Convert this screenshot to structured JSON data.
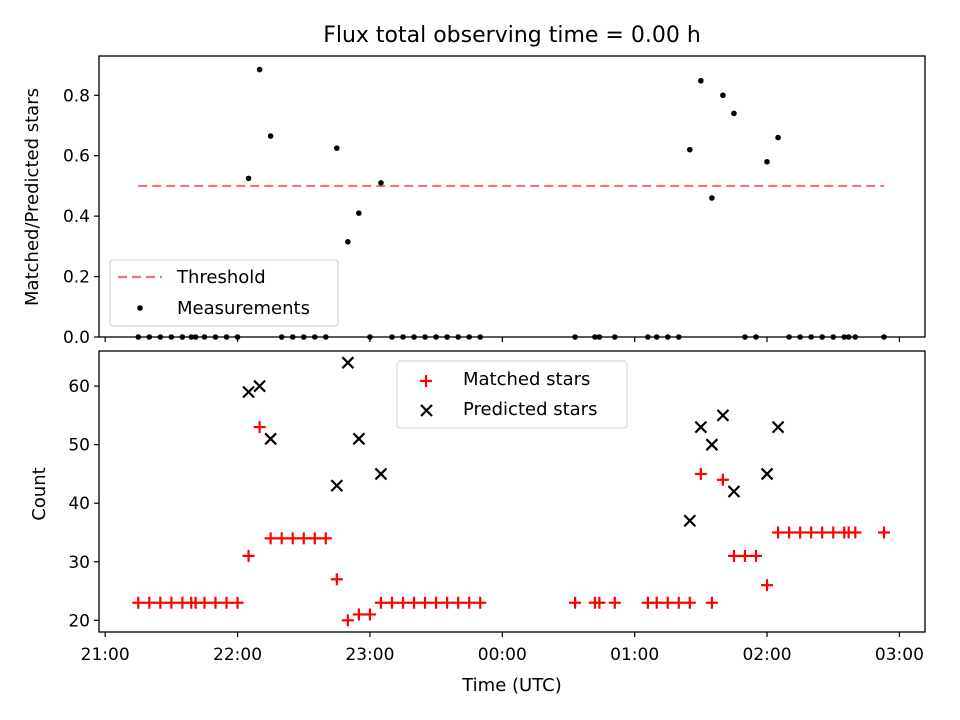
{
  "chart_data": [
    {
      "type": "scatter",
      "title": "Flux total observing time = 0.00 h",
      "xlabel": "",
      "ylabel": "Matched/Predicted stars",
      "xlim": [
        "21:00",
        "03:00"
      ],
      "ylim": [
        0,
        0.93
      ],
      "yticks": [
        "0.0",
        "0.2",
        "0.4",
        "0.6",
        "0.8"
      ],
      "legend_position": "lower-left",
      "threshold": {
        "name": "Threshold",
        "value": 0.5,
        "x_start": "21:15",
        "x_end": "02:53",
        "color": "#f87171"
      },
      "series": [
        {
          "name": "Measurements",
          "color": "#000000",
          "points": [
            [
              "21:15",
              0
            ],
            [
              "21:20",
              0
            ],
            [
              "21:25",
              0
            ],
            [
              "21:30",
              0
            ],
            [
              "21:35",
              0
            ],
            [
              "21:39",
              0
            ],
            [
              "21:41",
              0
            ],
            [
              "21:45",
              0
            ],
            [
              "21:50",
              0
            ],
            [
              "21:55",
              0
            ],
            [
              "22:00",
              0
            ],
            [
              "22:05",
              0.525
            ],
            [
              "22:10",
              0.885
            ],
            [
              "22:15",
              0.665
            ],
            [
              "22:20",
              0
            ],
            [
              "22:25",
              0
            ],
            [
              "22:30",
              0
            ],
            [
              "22:35",
              0
            ],
            [
              "22:40",
              0
            ],
            [
              "22:45",
              0.625
            ],
            [
              "22:50",
              0.315
            ],
            [
              "22:55",
              0.41
            ],
            [
              "23:00",
              0
            ],
            [
              "23:05",
              0.51
            ],
            [
              "23:10",
              0
            ],
            [
              "23:15",
              0
            ],
            [
              "23:20",
              0
            ],
            [
              "23:25",
              0
            ],
            [
              "23:30",
              0
            ],
            [
              "23:35",
              0
            ],
            [
              "23:40",
              0
            ],
            [
              "23:45",
              0
            ],
            [
              "23:50",
              0
            ],
            [
              "00:33",
              0
            ],
            [
              "00:42",
              0
            ],
            [
              "00:44",
              0
            ],
            [
              "00:51",
              0
            ],
            [
              "01:06",
              0
            ],
            [
              "01:10",
              0
            ],
            [
              "01:15",
              0
            ],
            [
              "01:20",
              0
            ],
            [
              "01:25",
              0.62
            ],
            [
              "01:30",
              0.848
            ],
            [
              "01:35",
              0.46
            ],
            [
              "01:40",
              0.8
            ],
            [
              "01:45",
              0.74
            ],
            [
              "01:50",
              0
            ],
            [
              "01:55",
              0
            ],
            [
              "02:00",
              0.58
            ],
            [
              "02:05",
              0.66
            ],
            [
              "02:10",
              0
            ],
            [
              "02:15",
              0
            ],
            [
              "02:20",
              0
            ],
            [
              "02:25",
              0
            ],
            [
              "02:30",
              0
            ],
            [
              "02:35",
              0
            ],
            [
              "02:37",
              0
            ],
            [
              "02:40",
              0
            ],
            [
              "02:53",
              0
            ]
          ]
        }
      ]
    },
    {
      "type": "scatter",
      "title": "",
      "xlabel": "Time (UTC)",
      "ylabel": "Count",
      "xlim": [
        "21:00",
        "03:00"
      ],
      "ylim": [
        18,
        66
      ],
      "yticks": [
        "20",
        "30",
        "40",
        "50",
        "60"
      ],
      "xticks": [
        "21:00",
        "22:00",
        "23:00",
        "00:00",
        "01:00",
        "02:00",
        "03:00"
      ],
      "legend_position": "upper-center",
      "series": [
        {
          "name": "Matched stars",
          "marker": "plus",
          "color": "#ff0000",
          "points": [
            [
              "21:15",
              23
            ],
            [
              "21:20",
              23
            ],
            [
              "21:25",
              23
            ],
            [
              "21:30",
              23
            ],
            [
              "21:35",
              23
            ],
            [
              "21:39",
              23
            ],
            [
              "21:41",
              23
            ],
            [
              "21:45",
              23
            ],
            [
              "21:50",
              23
            ],
            [
              "21:55",
              23
            ],
            [
              "22:00",
              23
            ],
            [
              "22:05",
              31
            ],
            [
              "22:10",
              53
            ],
            [
              "22:15",
              34
            ],
            [
              "22:20",
              34
            ],
            [
              "22:25",
              34
            ],
            [
              "22:30",
              34
            ],
            [
              "22:35",
              34
            ],
            [
              "22:40",
              34
            ],
            [
              "22:45",
              27
            ],
            [
              "22:50",
              20
            ],
            [
              "22:55",
              21
            ],
            [
              "23:00",
              21
            ],
            [
              "23:05",
              23
            ],
            [
              "23:10",
              23
            ],
            [
              "23:15",
              23
            ],
            [
              "23:20",
              23
            ],
            [
              "23:25",
              23
            ],
            [
              "23:30",
              23
            ],
            [
              "23:35",
              23
            ],
            [
              "23:40",
              23
            ],
            [
              "23:45",
              23
            ],
            [
              "23:50",
              23
            ],
            [
              "00:33",
              23
            ],
            [
              "00:42",
              23
            ],
            [
              "00:44",
              23
            ],
            [
              "00:51",
              23
            ],
            [
              "01:06",
              23
            ],
            [
              "01:10",
              23
            ],
            [
              "01:15",
              23
            ],
            [
              "01:20",
              23
            ],
            [
              "01:25",
              23
            ],
            [
              "01:30",
              45
            ],
            [
              "01:35",
              23
            ],
            [
              "01:40",
              44
            ],
            [
              "01:45",
              31
            ],
            [
              "01:50",
              31
            ],
            [
              "01:55",
              31
            ],
            [
              "02:00",
              26
            ],
            [
              "02:05",
              35
            ],
            [
              "02:10",
              35
            ],
            [
              "02:15",
              35
            ],
            [
              "02:20",
              35
            ],
            [
              "02:25",
              35
            ],
            [
              "02:30",
              35
            ],
            [
              "02:35",
              35
            ],
            [
              "02:37",
              35
            ],
            [
              "02:40",
              35
            ],
            [
              "02:53",
              35
            ]
          ]
        },
        {
          "name": "Predicted stars",
          "marker": "x",
          "color": "#000000",
          "points": [
            [
              "22:05",
              59
            ],
            [
              "22:10",
              60
            ],
            [
              "22:15",
              51
            ],
            [
              "22:45",
              43
            ],
            [
              "22:50",
              64
            ],
            [
              "22:55",
              51
            ],
            [
              "23:05",
              45
            ],
            [
              "01:25",
              37
            ],
            [
              "01:30",
              53
            ],
            [
              "01:35",
              50
            ],
            [
              "01:40",
              55
            ],
            [
              "01:45",
              42
            ],
            [
              "02:00",
              45
            ],
            [
              "02:05",
              53
            ]
          ]
        }
      ]
    }
  ]
}
